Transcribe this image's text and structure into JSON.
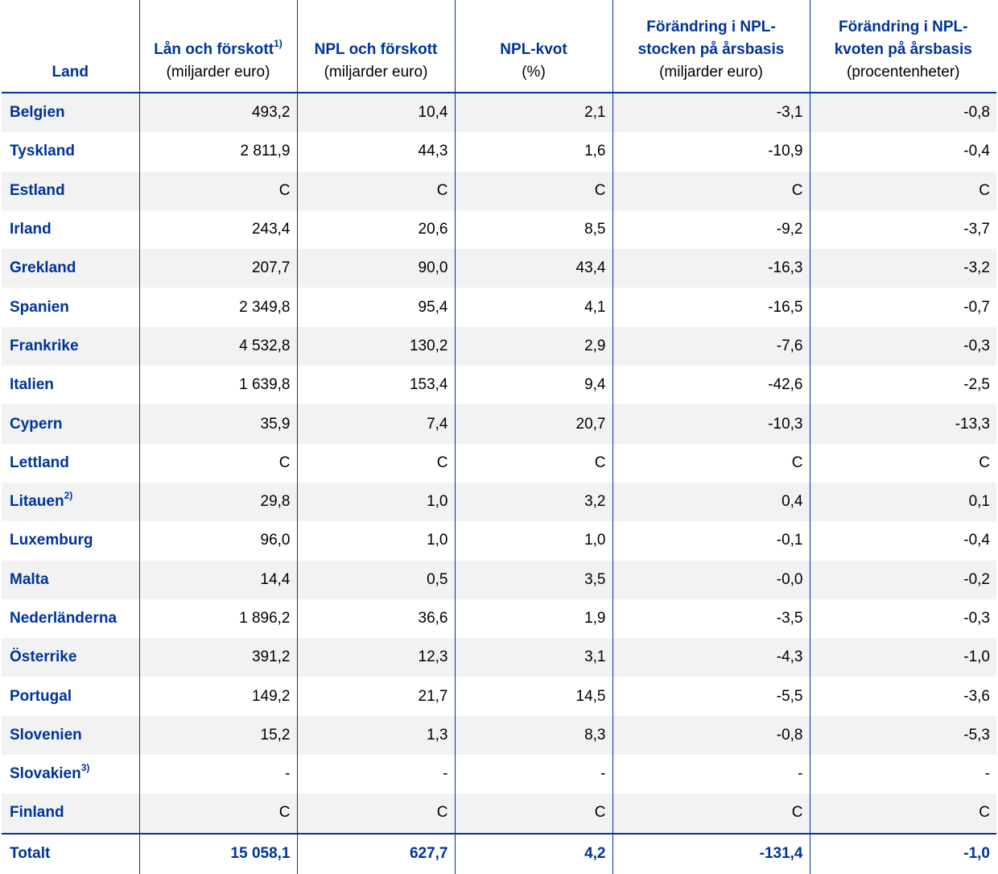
{
  "headers": {
    "land": "Land",
    "loans": {
      "title": "Lån och förskott",
      "sup": "1)",
      "unit": "(miljarder euro)"
    },
    "npl": {
      "title": "NPL och förskott",
      "unit": "(miljarder euro)"
    },
    "ratio": {
      "title": "NPL-kvot",
      "unit": "(%)"
    },
    "stock_change": {
      "title": "Förändring i NPL-stocken på årsbasis",
      "unit": "(miljarder euro)"
    },
    "ratio_change": {
      "title": "Förändring i NPL-kvoten på årsbasis",
      "unit": "(procentenheter)"
    }
  },
  "rows": [
    {
      "country": "Belgien",
      "sup": "",
      "loans": "493,2",
      "npl": "10,4",
      "ratio": "2,1",
      "stock_change": "-3,1",
      "ratio_change": "-0,8"
    },
    {
      "country": "Tyskland",
      "sup": "",
      "loans": "2 811,9",
      "npl": "44,3",
      "ratio": "1,6",
      "stock_change": "-10,9",
      "ratio_change": "-0,4"
    },
    {
      "country": "Estland",
      "sup": "",
      "loans": "C",
      "npl": "C",
      "ratio": "C",
      "stock_change": "C",
      "ratio_change": "C"
    },
    {
      "country": "Irland",
      "sup": "",
      "loans": "243,4",
      "npl": "20,6",
      "ratio": "8,5",
      "stock_change": "-9,2",
      "ratio_change": "-3,7"
    },
    {
      "country": "Grekland",
      "sup": "",
      "loans": "207,7",
      "npl": "90,0",
      "ratio": "43,4",
      "stock_change": "-16,3",
      "ratio_change": "-3,2"
    },
    {
      "country": "Spanien",
      "sup": "",
      "loans": "2 349,8",
      "npl": "95,4",
      "ratio": "4,1",
      "stock_change": "-16,5",
      "ratio_change": "-0,7"
    },
    {
      "country": "Frankrike",
      "sup": "",
      "loans": "4 532,8",
      "npl": "130,2",
      "ratio": "2,9",
      "stock_change": "-7,6",
      "ratio_change": "-0,3"
    },
    {
      "country": "Italien",
      "sup": "",
      "loans": "1 639,8",
      "npl": "153,4",
      "ratio": "9,4",
      "stock_change": "-42,6",
      "ratio_change": "-2,5"
    },
    {
      "country": "Cypern",
      "sup": "",
      "loans": "35,9",
      "npl": "7,4",
      "ratio": "20,7",
      "stock_change": "-10,3",
      "ratio_change": "-13,3"
    },
    {
      "country": "Lettland",
      "sup": "",
      "loans": "C",
      "npl": "C",
      "ratio": "C",
      "stock_change": "C",
      "ratio_change": "C"
    },
    {
      "country": "Litauen",
      "sup": "2)",
      "loans": "29,8",
      "npl": "1,0",
      "ratio": "3,2",
      "stock_change": "0,4",
      "ratio_change": "0,1"
    },
    {
      "country": "Luxemburg",
      "sup": "",
      "loans": "96,0",
      "npl": "1,0",
      "ratio": "1,0",
      "stock_change": "-0,1",
      "ratio_change": "-0,4"
    },
    {
      "country": "Malta",
      "sup": "",
      "loans": "14,4",
      "npl": "0,5",
      "ratio": "3,5",
      "stock_change": "-0,0",
      "ratio_change": "-0,2"
    },
    {
      "country": "Nederländerna",
      "sup": "",
      "loans": "1 896,2",
      "npl": "36,6",
      "ratio": "1,9",
      "stock_change": "-3,5",
      "ratio_change": "-0,3"
    },
    {
      "country": "Österrike",
      "sup": "",
      "loans": "391,2",
      "npl": "12,3",
      "ratio": "3,1",
      "stock_change": "-4,3",
      "ratio_change": "-1,0"
    },
    {
      "country": "Portugal",
      "sup": "",
      "loans": "149,2",
      "npl": "21,7",
      "ratio": "14,5",
      "stock_change": "-5,5",
      "ratio_change": "-3,6"
    },
    {
      "country": "Slovenien",
      "sup": "",
      "loans": "15,2",
      "npl": "1,3",
      "ratio": "8,3",
      "stock_change": "-0,8",
      "ratio_change": "-5,3"
    },
    {
      "country": "Slovakien",
      "sup": "3)",
      "loans": "-",
      "npl": "-",
      "ratio": "-",
      "stock_change": "-",
      "ratio_change": "-"
    },
    {
      "country": "Finland",
      "sup": "",
      "loans": "C",
      "npl": "C",
      "ratio": "C",
      "stock_change": "C",
      "ratio_change": "C"
    }
  ],
  "total": {
    "country": "Totalt",
    "loans": "15 058,1",
    "npl": "627,7",
    "ratio": "4,2",
    "stock_change": "-131,4",
    "ratio_change": "-1,0"
  },
  "colors": {
    "accent": "#003399",
    "stripe": "#f2f2f2"
  }
}
